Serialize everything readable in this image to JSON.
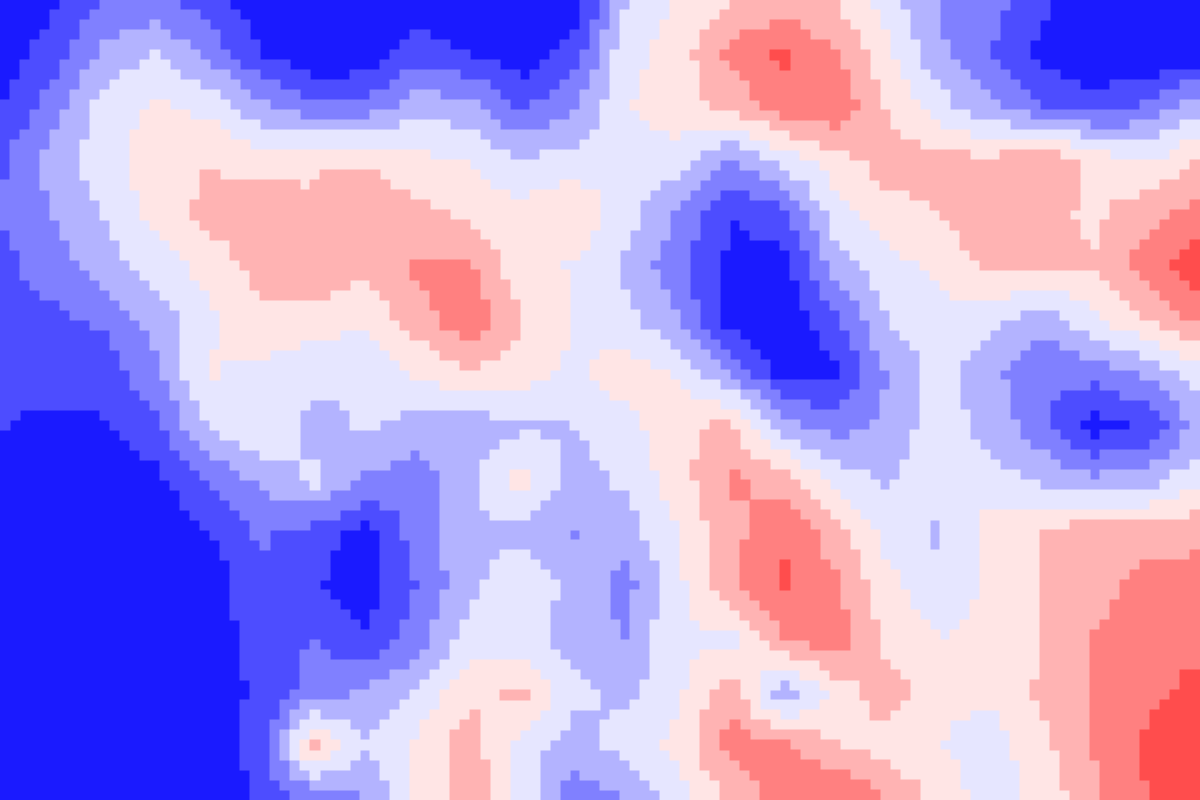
{
  "chart_data": {
    "type": "heatmap",
    "style": "filled-contour",
    "colormap": "bwr",
    "colors": {
      "low": "#0000ff",
      "mid": "#ffffff",
      "high": "#ff0000"
    },
    "title": "",
    "xlabel": "",
    "ylabel": "",
    "axes_visible": false,
    "grid": false,
    "legend": "none",
    "levels": [
      -5,
      -4,
      -3,
      -2,
      -1,
      0,
      1,
      2,
      3,
      4,
      5
    ],
    "grid_cols": 24,
    "grid_rows": 16,
    "z": [
      [
        -4.9,
        -4.3,
        -3.0,
        -2.8,
        -3.6,
        -4.6,
        -5.0,
        -5.0,
        -4.7,
        -4.9,
        -5.0,
        -4.9,
        -1.0,
        0.2,
        0.9,
        1.3,
        1.0,
        -0.6,
        -2.1,
        -2.6,
        -3.8,
        -4.8,
        -5.0,
        -4.9
      ],
      [
        -4.6,
        -3.5,
        -1.8,
        -1.0,
        -2.3,
        -4.0,
        -5.0,
        -4.8,
        -3.5,
        -4.1,
        -4.7,
        -3.5,
        -0.3,
        0.4,
        2.3,
        3.2,
        2.0,
        0.3,
        -1.8,
        -3.0,
        -4.3,
        -5.0,
        -5.0,
        -4.8
      ],
      [
        -4.0,
        -2.6,
        -0.6,
        0.2,
        -0.3,
        -1.8,
        -2.8,
        -2.7,
        -1.4,
        -1.6,
        -3.2,
        -2.1,
        -0.1,
        0.6,
        1.2,
        2.5,
        2.9,
        0.9,
        -0.6,
        -1.8,
        -3.0,
        -3.6,
        -2.8,
        -1.2
      ],
      [
        -3.2,
        -1.6,
        -0.4,
        0.6,
        1.0,
        0.5,
        0.9,
        0.9,
        0.2,
        -0.1,
        -1.0,
        -0.6,
        -0.3,
        -0.5,
        -2.2,
        -0.6,
        0.5,
        1.5,
        1.3,
        1.2,
        2.0,
        0.6,
        -0.2,
        1.0
      ],
      [
        -3.0,
        -2.0,
        -0.9,
        0.3,
        1.3,
        1.6,
        1.1,
        1.8,
        1.3,
        0.7,
        0.4,
        0.9,
        -0.6,
        -2.1,
        -4.0,
        -3.3,
        -0.5,
        0.6,
        1.0,
        1.8,
        1.3,
        0.8,
        1.7,
        2.4
      ],
      [
        -3.4,
        -2.5,
        -1.5,
        -0.6,
        0.4,
        1.4,
        1.9,
        1.2,
        2.2,
        2.1,
        0.3,
        -0.1,
        -1.2,
        -2.7,
        -4.3,
        -4.5,
        -1.6,
        -0.4,
        0.2,
        1.3,
        1.0,
        1.1,
        2.5,
        3.6
      ],
      [
        -3.0,
        -3.3,
        -2.8,
        -1.6,
        -0.2,
        0.7,
        0.4,
        0.2,
        1.5,
        2.8,
        1.1,
        0.0,
        -0.7,
        -2.0,
        -4.6,
        -5.0,
        -3.2,
        -1.0,
        -0.3,
        -0.8,
        -1.6,
        -0.2,
        1.0,
        2.4
      ],
      [
        -3.5,
        -3.2,
        -3.6,
        -2.2,
        0.1,
        -0.3,
        -0.6,
        -1.0,
        0.1,
        0.8,
        0.5,
        -0.3,
        0.6,
        -0.2,
        -2.0,
        -4.5,
        -4.4,
        -2.0,
        -0.6,
        -1.7,
        -3.0,
        -2.6,
        -1.9,
        -0.5
      ],
      [
        -3.9,
        -4.5,
        -4.1,
        -3.2,
        -1.0,
        0.0,
        -1.5,
        -0.8,
        -1.4,
        -1.6,
        -1.2,
        -1.0,
        -0.4,
        0.8,
        1.2,
        -1.5,
        -2.5,
        -1.7,
        -0.5,
        -1.4,
        -2.7,
        -4.5,
        -3.8,
        -1.6
      ],
      [
        -4.6,
        -5.0,
        -5.0,
        -4.3,
        -2.9,
        -1.8,
        -0.6,
        -2.2,
        -2.6,
        -1.3,
        0.4,
        -1.4,
        -0.8,
        0.5,
        2.2,
        1.5,
        -0.4,
        -1.2,
        -0.2,
        -0.6,
        -1.2,
        -1.8,
        -1.5,
        -0.2
      ],
      [
        -4.8,
        -5.0,
        -5.0,
        -4.9,
        -4.1,
        -2.8,
        -3.5,
        -4.4,
        -2.5,
        -1.1,
        -1.4,
        -2.1,
        -1.5,
        0.0,
        1.6,
        3.0,
        1.4,
        -0.4,
        -1.2,
        0.5,
        1.0,
        1.8,
        1.6,
        1.9
      ],
      [
        -4.9,
        -5.0,
        -5.0,
        -5.0,
        -4.7,
        -3.2,
        -3.9,
        -4.6,
        -3.0,
        -1.3,
        -0.2,
        -1.4,
        -2.4,
        -0.3,
        1.7,
        3.1,
        2.2,
        0.3,
        -0.6,
        0.2,
        1.0,
        1.6,
        2.4,
        2.2
      ],
      [
        -4.8,
        -5.0,
        -5.0,
        -4.9,
        -4.4,
        -3.7,
        -3.0,
        -3.8,
        -2.5,
        -0.5,
        -0.8,
        -1.3,
        -2.0,
        0.0,
        -0.5,
        2.0,
        2.7,
        0.7,
        0.0,
        0.3,
        1.0,
        2.1,
        2.5,
        2.8
      ],
      [
        -4.6,
        -4.9,
        -5.0,
        -4.8,
        -4.3,
        -3.9,
        -2.5,
        -1.8,
        -0.9,
        0.8,
        1.2,
        -0.8,
        -1.2,
        -0.3,
        1.9,
        -2.0,
        0.2,
        1.6,
        0.2,
        0.1,
        1.2,
        2.2,
        2.8,
        3.3
      ],
      [
        -4.7,
        -5.0,
        -5.0,
        -4.9,
        -4.5,
        -3.6,
        1.4,
        -0.9,
        0.3,
        1.6,
        -0.6,
        -1.5,
        -0.6,
        0.3,
        2.4,
        2.3,
        1.1,
        0.5,
        0.0,
        -0.4,
        0.7,
        2.1,
        3.2,
        3.6
      ],
      [
        -4.8,
        -5.0,
        -5.0,
        -5.0,
        -4.8,
        -3.9,
        -2.9,
        -2.1,
        0.1,
        1.8,
        -0.3,
        -2.7,
        -2.1,
        -0.5,
        1.1,
        2.7,
        3.2,
        2.0,
        0.7,
        -0.6,
        0.3,
        1.8,
        3.0,
        3.2
      ]
    ]
  }
}
